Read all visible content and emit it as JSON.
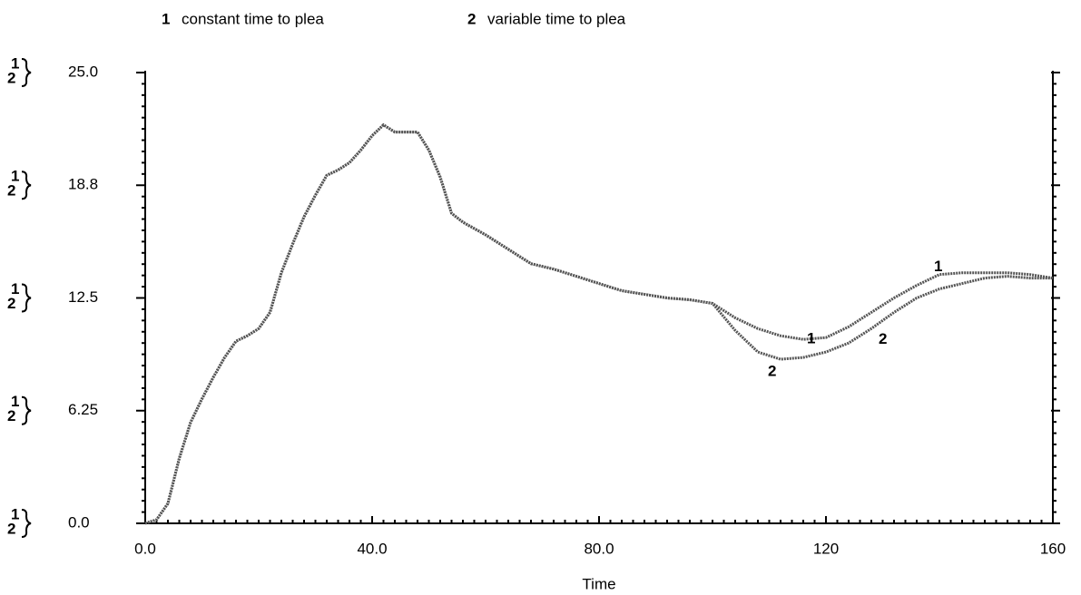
{
  "chart_data": {
    "type": "line",
    "x_label": "Time",
    "x": [
      0,
      2,
      4,
      6,
      8,
      10,
      12,
      14,
      16,
      18,
      20,
      22,
      24,
      26,
      28,
      30,
      32,
      34,
      36,
      38,
      40,
      42,
      44,
      46,
      48,
      50,
      52,
      54,
      56,
      60,
      64,
      68,
      72,
      76,
      80,
      84,
      88,
      92,
      96,
      100,
      104,
      108,
      112,
      116,
      120,
      124,
      128,
      132,
      136,
      140,
      144,
      148,
      152,
      156,
      160
    ],
    "series": [
      {
        "label": "1",
        "name": "constant time to plea",
        "color": "#555555",
        "values": [
          0,
          0.2,
          1.1,
          3.6,
          5.6,
          6.9,
          8.1,
          9.2,
          10.1,
          10.4,
          10.8,
          11.7,
          13.9,
          15.5,
          17.0,
          18.2,
          19.3,
          19.6,
          20.0,
          20.7,
          21.5,
          22.1,
          21.7,
          21.7,
          21.7,
          20.7,
          19.2,
          17.2,
          16.7,
          16.0,
          15.2,
          14.4,
          14.1,
          13.7,
          13.3,
          12.9,
          12.7,
          12.5,
          12.4,
          12.2,
          11.4,
          10.8,
          10.4,
          10.2,
          10.3,
          10.9,
          11.7,
          12.5,
          13.2,
          13.8,
          13.9,
          13.9,
          13.9,
          13.8,
          13.6
        ]
      },
      {
        "label": "2",
        "name": "variable time to plea",
        "color": "#555555",
        "values": [
          0,
          0.2,
          1.1,
          3.6,
          5.6,
          6.9,
          8.1,
          9.2,
          10.1,
          10.4,
          10.8,
          11.7,
          13.9,
          15.5,
          17.0,
          18.2,
          19.3,
          19.6,
          20.0,
          20.7,
          21.5,
          22.1,
          21.7,
          21.7,
          21.7,
          20.7,
          19.2,
          17.2,
          16.7,
          16.0,
          15.2,
          14.4,
          14.1,
          13.7,
          13.3,
          12.9,
          12.7,
          12.5,
          12.4,
          12.2,
          10.7,
          9.5,
          9.1,
          9.2,
          9.5,
          10.0,
          10.8,
          11.7,
          12.5,
          13.0,
          13.3,
          13.6,
          13.7,
          13.6,
          13.6
        ]
      }
    ],
    "xlim": [
      0,
      160
    ],
    "xticks": [
      {
        "value": 0,
        "label": "0.0"
      },
      {
        "value": 40,
        "label": "40.0"
      },
      {
        "value": 80,
        "label": "80.0"
      },
      120,
      160
    ],
    "ylim": [
      0,
      25
    ],
    "yticks": [
      {
        "value": 0,
        "label": "0.0"
      },
      6.25,
      12.5,
      {
        "value": 18.75,
        "label": "18.8"
      },
      {
        "value": 25,
        "label": "25.0"
      }
    ]
  }
}
